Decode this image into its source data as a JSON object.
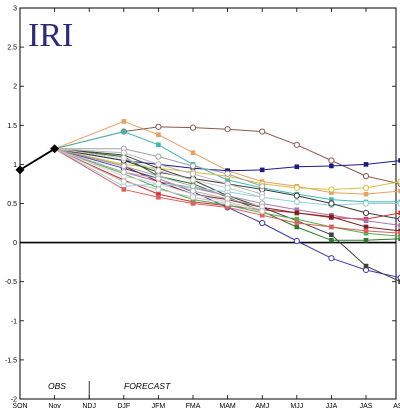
{
  "logo": {
    "text": "IRI",
    "color": "#2b2b7a"
  },
  "labels": {
    "obs": "OBS",
    "forecast": "FORECAST"
  },
  "chart_data": {
    "type": "line",
    "title": "",
    "xlabel": "",
    "ylabel": "",
    "ylim": [
      -2,
      3
    ],
    "yticks": [
      -2,
      -1.5,
      -1,
      -0.5,
      0,
      0.5,
      1,
      1.5,
      2,
      2.5,
      3
    ],
    "categories": [
      "SON",
      "Nov",
      "NDJ",
      "DJF",
      "JFM",
      "FMA",
      "MAM",
      "AMJ",
      "MJJ",
      "JJA",
      "JAS",
      "ASO"
    ],
    "observed": {
      "x": [
        "SON",
        "Nov"
      ],
      "values": [
        0.93,
        1.2
      ],
      "color": "#000000"
    },
    "zero_line": 0,
    "grid": false,
    "series": [
      {
        "color": "#e8a060",
        "marker": "square",
        "values": [
          null,
          1.2,
          null,
          1.55,
          1.38,
          1.15,
          0.92,
          0.78,
          0.72,
          0.64,
          0.62,
          0.66
        ]
      },
      {
        "color": "#8c5a4a",
        "marker": "circle-open",
        "values": [
          null,
          1.2,
          null,
          1.42,
          1.48,
          1.47,
          1.45,
          1.42,
          1.25,
          1.05,
          0.85,
          0.75
        ]
      },
      {
        "color": "#1a1a8c",
        "marker": "square",
        "values": [
          null,
          1.2,
          null,
          1.05,
          1.0,
          0.95,
          0.92,
          0.93,
          0.97,
          0.98,
          1.0,
          1.05
        ]
      },
      {
        "color": "#40b8b0",
        "marker": "square",
        "values": [
          null,
          1.2,
          null,
          1.42,
          1.25,
          1.0,
          0.8,
          0.7,
          0.62,
          0.55,
          0.52,
          0.52
        ]
      },
      {
        "color": "#d8c040",
        "marker": "circle-open",
        "values": [
          null,
          1.2,
          null,
          1.0,
          0.95,
          0.9,
          0.85,
          0.75,
          0.7,
          0.68,
          0.7,
          0.78
        ]
      },
      {
        "color": "#2a7a2a",
        "marker": "square",
        "values": [
          null,
          1.2,
          null,
          1.1,
          0.85,
          0.75,
          0.58,
          0.4,
          0.2,
          0.03,
          0.03,
          0.05
        ]
      },
      {
        "color": "#d03030",
        "marker": "square",
        "values": [
          null,
          1.2,
          null,
          0.8,
          0.62,
          0.52,
          0.47,
          0.42,
          0.38,
          0.32,
          0.3,
          0.38
        ]
      },
      {
        "color": "#3a3ab0",
        "marker": "circle-open",
        "values": [
          null,
          1.2,
          null,
          0.95,
          0.82,
          0.65,
          0.45,
          0.25,
          0.02,
          -0.2,
          -0.35,
          -0.45
        ]
      },
      {
        "color": "#404040",
        "marker": "square",
        "values": [
          null,
          1.2,
          null,
          1.12,
          0.95,
          0.8,
          0.6,
          0.45,
          0.28,
          0.1,
          -0.3,
          -0.5
        ]
      },
      {
        "color": "#b070b0",
        "marker": "square",
        "values": [
          null,
          1.2,
          null,
          0.9,
          0.78,
          0.7,
          0.6,
          0.5,
          0.42,
          0.35,
          0.28,
          0.22
        ]
      },
      {
        "color": "#802020",
        "marker": "square",
        "values": [
          null,
          1.2,
          null,
          0.98,
          0.78,
          0.62,
          0.55,
          0.45,
          0.38,
          0.33,
          0.2,
          0.15
        ]
      },
      {
        "color": "#90d0e0",
        "marker": "circle-open",
        "values": [
          null,
          1.2,
          null,
          0.72,
          0.75,
          0.7,
          0.65,
          0.58,
          0.52,
          0.48,
          0.5,
          0.5
        ]
      },
      {
        "color": "#3a3a3a",
        "marker": "circle-open",
        "values": [
          null,
          1.2,
          null,
          1.05,
          0.9,
          0.82,
          0.75,
          0.68,
          0.6,
          0.5,
          0.38,
          0.3
        ]
      },
      {
        "color": "#50b050",
        "marker": "square",
        "values": [
          null,
          1.2,
          null,
          0.88,
          0.7,
          0.55,
          0.48,
          0.38,
          0.3,
          0.2,
          0.12,
          0.08
        ]
      },
      {
        "color": "#e06060",
        "marker": "square",
        "values": [
          null,
          1.2,
          null,
          0.68,
          0.58,
          0.5,
          0.45,
          0.35,
          0.25,
          0.2,
          0.15,
          0.12
        ]
      },
      {
        "color": "#a0a0a0",
        "marker": "circle-open",
        "values": [
          null,
          1.2,
          null,
          1.2,
          1.1,
          0.98,
          0.88,
          0.72,
          null,
          null,
          null,
          null
        ]
      },
      {
        "color": "#b8b8b8",
        "marker": "circle-open",
        "values": [
          null,
          1.2,
          null,
          1.15,
          1.0,
          0.88,
          0.75,
          0.62,
          null,
          null,
          null,
          null
        ]
      },
      {
        "color": "#c8c8c8",
        "marker": "circle-open",
        "values": [
          null,
          1.2,
          null,
          1.08,
          0.92,
          0.8,
          0.7,
          0.58,
          null,
          null,
          null,
          null
        ]
      },
      {
        "color": "#a8a8a8",
        "marker": "circle-open",
        "values": [
          null,
          1.2,
          null,
          0.98,
          0.85,
          0.72,
          0.6,
          0.5,
          null,
          null,
          null,
          null
        ]
      },
      {
        "color": "#d0d0d0",
        "marker": "circle-open",
        "values": [
          null,
          1.2,
          null,
          0.85,
          0.75,
          0.62,
          0.52,
          0.42,
          null,
          null,
          null,
          null
        ]
      },
      {
        "color": "#b0b0b0",
        "marker": "circle-open",
        "values": [
          null,
          1.2,
          null,
          0.9,
          0.82,
          0.66,
          0.56,
          0.46,
          null,
          null,
          null,
          null
        ]
      },
      {
        "color": "#c0c0c0",
        "marker": "circle-open",
        "values": [
          null,
          1.2,
          null,
          0.78,
          0.68,
          0.58,
          0.5,
          0.4,
          null,
          null,
          null,
          null
        ]
      }
    ]
  }
}
